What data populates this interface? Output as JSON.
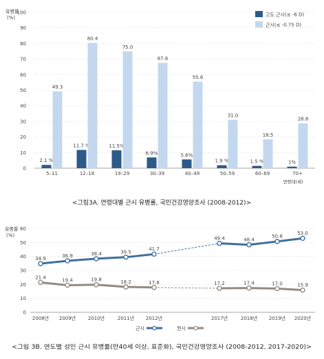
{
  "colors": {
    "dark_bar": "#2d5a88",
    "light_bar": "#c3d8ef",
    "myopia_line": "#3d6f9e",
    "hyperopia_line": "#938a82",
    "grid": "#dddddd",
    "axis": "#888888"
  },
  "chart_data": [
    {
      "type": "bar",
      "ylabel": "유병률\n(%)",
      "ylim": [
        0,
        100
      ],
      "yticks": [
        0,
        10,
        20,
        30,
        40,
        50,
        60,
        70,
        80,
        90,
        100
      ],
      "xlabel": "연령대(세)",
      "categories": [
        "5–11",
        "12–18",
        "19–29",
        "30–39",
        "40–49",
        "50–59",
        "60–69",
        "70+"
      ],
      "series": [
        {
          "name": "고도 근시(≤ -6 D)",
          "values": [
            2.1,
            11.7,
            11.5,
            6.9,
            5.6,
            1.9,
            1.5,
            1
          ],
          "labels": [
            "2.1 %",
            "11.7 %",
            "11.5%",
            "6.9%",
            "5.6%",
            "1.9 %",
            "1.5 %",
            "1%"
          ]
        },
        {
          "name": "근시(≤ -0.75 D)",
          "values": [
            49.3,
            80.4,
            75.0,
            67.6,
            55.6,
            31.0,
            18.5,
            28.8
          ],
          "labels": [
            "49.3",
            "80.4",
            "75.0",
            "67.6",
            "55.6",
            "31.0",
            "18.5",
            "28.8"
          ]
        }
      ],
      "caption": "<그림3A. 연령대별 근시 유병률, 국민건강영양조사 (2008-2012)>"
    },
    {
      "type": "line",
      "ylabel": "유병률\n(%)",
      "ylim": [
        0,
        60
      ],
      "yticks": [
        0,
        10,
        20,
        30,
        40,
        50,
        60
      ],
      "categories": [
        "2008년",
        "2009년",
        "2010년",
        "2011년",
        "2012년",
        "2017년",
        "2018년",
        "2019년",
        "2020년"
      ],
      "series": [
        {
          "name": "근시",
          "values": [
            34.9,
            36.9,
            38.4,
            39.5,
            41.7,
            49.4,
            48.4,
            50.8,
            53.0
          ],
          "labels": [
            "34.9",
            "36.9",
            "38.4",
            "39.5",
            "41.7",
            "49.4",
            "48.4",
            "50.8",
            "53.0"
          ]
        },
        {
          "name": "원시",
          "values": [
            21.4,
            19.4,
            19.8,
            18.2,
            17.8,
            17.2,
            17.4,
            17.0,
            15.9
          ],
          "labels": [
            "21.4",
            "19.4",
            "19.8",
            "18.2",
            "17.8",
            "17.2",
            "17.4",
            "17.0",
            "15.9"
          ]
        }
      ],
      "caption": "<그림 3B. 연도별 성인 근시 유병률(만40세 이상, 표준화), 국민건강영양조사 (2008-2012, 2017-2020)>"
    }
  ]
}
